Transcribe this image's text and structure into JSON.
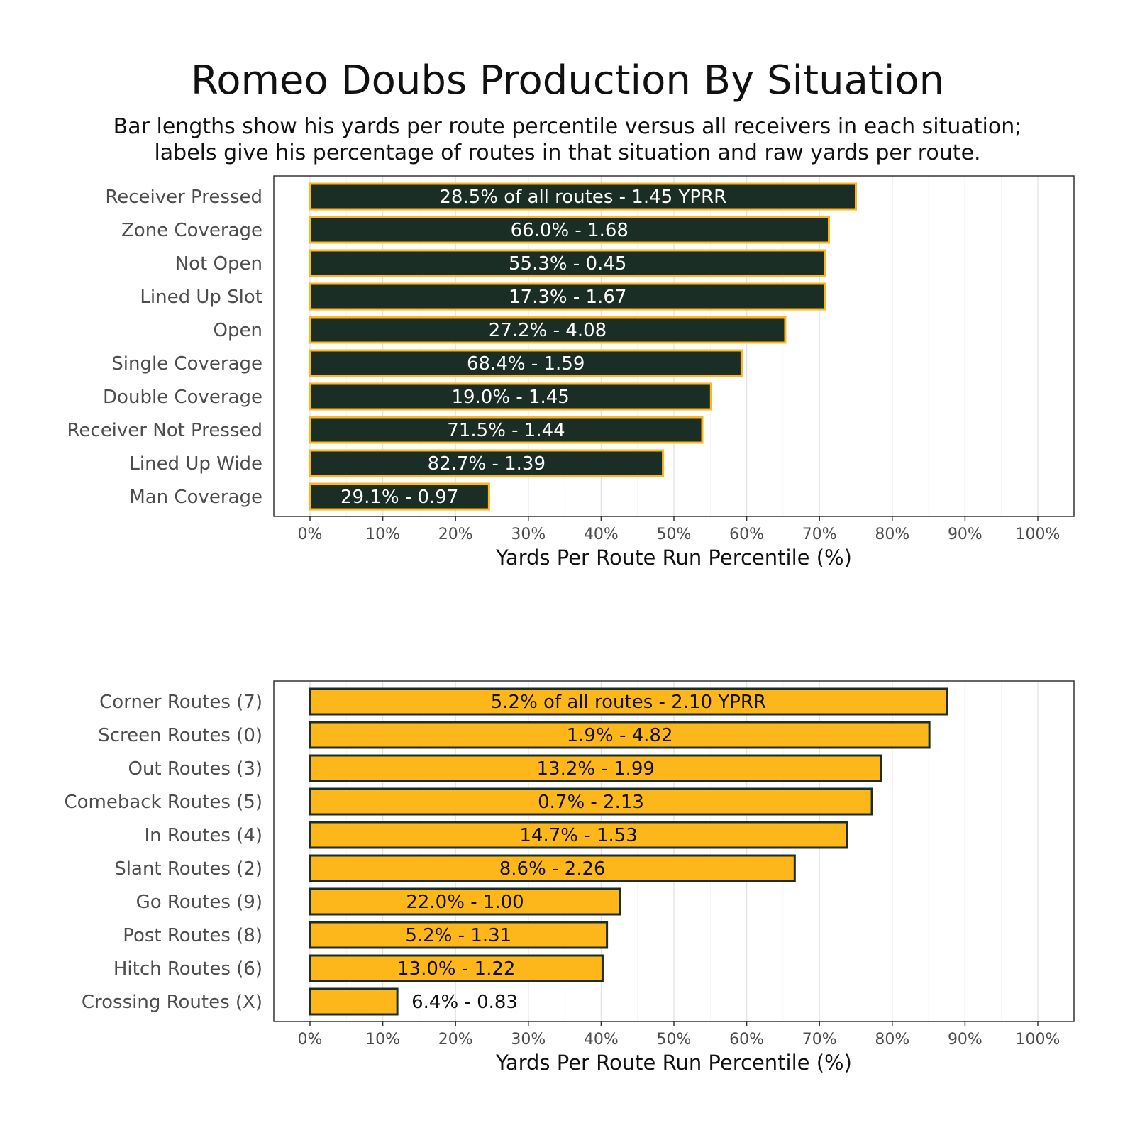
{
  "title": "Romeo Doubs Production By Situation",
  "subtitle_lines": [
    "Bar lengths show his yards per route percentile versus all receivers in each situation;",
    "labels give his percentage of routes in that situation and raw yards per route."
  ],
  "colors": {
    "dark_green": "#1b2e26",
    "gold": "#fdb71a",
    "gridline": "#e3e3e3",
    "axis_text": "#4d4d4d",
    "frame": "#333333"
  },
  "chart_data": [
    {
      "type": "bar",
      "orientation": "horizontal",
      "xlabel": "Yards Per Route Run Percentile (%)",
      "xlim": [
        0,
        100
      ],
      "xticks": [
        "0%",
        "10%",
        "20%",
        "30%",
        "40%",
        "50%",
        "60%",
        "70%",
        "80%",
        "90%",
        "100%"
      ],
      "grid": true,
      "bar_fill": "#1b2e26",
      "bar_stroke": "#fdb71a",
      "label_color": "#ffffff",
      "categories": [
        "Receiver Pressed",
        "Zone Coverage",
        "Not Open",
        "Lined Up Slot",
        "Open",
        "Single Coverage",
        "Double Coverage",
        "Receiver Not Pressed",
        "Lined Up Wide",
        "Man Coverage"
      ],
      "values": [
        75,
        71.3,
        70.8,
        70.8,
        65.3,
        59.3,
        55.1,
        53.9,
        48.5,
        24.6
      ],
      "labels": [
        "28.5% of all routes - 1.45 YPRR",
        "66.0% - 1.68",
        "55.3% - 0.45",
        "17.3% - 1.67",
        "27.2% - 4.08",
        "68.4% - 1.59",
        "19.0% - 1.45",
        "71.5% - 1.44",
        "82.7% - 1.39",
        "29.1% - 0.97"
      ]
    },
    {
      "type": "bar",
      "orientation": "horizontal",
      "xlabel": "Yards Per Route Run Percentile (%)",
      "xlim": [
        0,
        100
      ],
      "xticks": [
        "0%",
        "10%",
        "20%",
        "30%",
        "40%",
        "50%",
        "60%",
        "70%",
        "80%",
        "90%",
        "100%"
      ],
      "grid": true,
      "bar_fill": "#fdb71a",
      "bar_stroke": "#1b2e26",
      "label_color": "#111111",
      "categories": [
        "Corner Routes (7)",
        "Screen Routes (0)",
        "Out Routes (3)",
        "Comeback Routes (5)",
        "In Routes (4)",
        "Slant Routes (2)",
        "Go Routes (9)",
        "Post Routes (8)",
        "Hitch Routes (6)",
        "Crossing Routes (X)"
      ],
      "values": [
        87.5,
        85.1,
        78.5,
        77.2,
        73.8,
        66.6,
        42.6,
        40.8,
        40.2,
        12
      ],
      "labels": [
        "5.2% of all routes - 2.10 YPRR",
        "1.9% - 4.82",
        "13.2% - 1.99",
        "0.7% - 2.13",
        "14.7% - 1.53",
        "8.6% - 2.26",
        "22.0% - 1.00",
        "5.2% - 1.31",
        "13.0% - 1.22",
        "6.4% - 0.83"
      ]
    }
  ]
}
